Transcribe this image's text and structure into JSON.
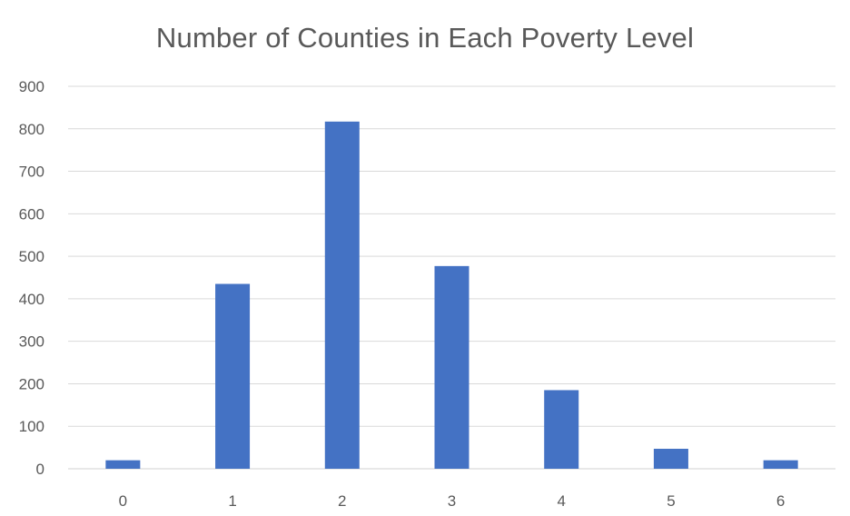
{
  "chart_data": {
    "type": "bar",
    "title": "Number of Counties in Each Poverty Level",
    "xlabel": "",
    "ylabel": "",
    "categories": [
      "0",
      "1",
      "2",
      "3",
      "4",
      "5",
      "6"
    ],
    "values": [
      20,
      435,
      817,
      477,
      185,
      47,
      20
    ],
    "ylim": [
      0,
      900
    ],
    "yticks": [
      0,
      100,
      200,
      300,
      400,
      500,
      600,
      700,
      800,
      900
    ],
    "grid": true,
    "legend": "none",
    "bar_color": "#4472C4",
    "gridline_color": "#D9D9D9",
    "text_color": "#595959"
  }
}
